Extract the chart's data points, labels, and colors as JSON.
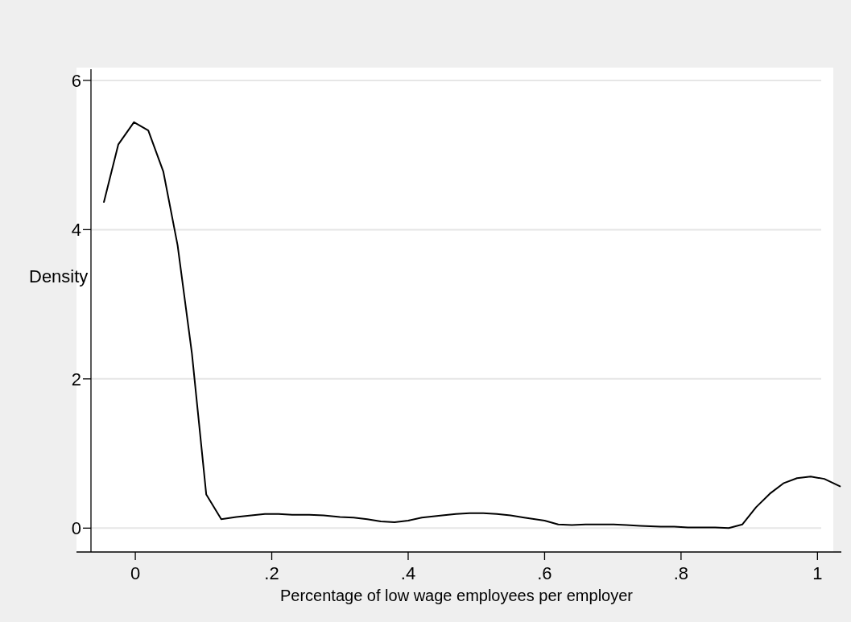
{
  "chart_data": {
    "type": "line",
    "xlabel": "Percentage of low wage employees per employer",
    "ylabel": "Density",
    "x": [
      -0.046,
      -0.025,
      -0.002,
      0.019,
      0.041,
      0.062,
      0.083,
      0.104,
      0.126,
      0.148,
      0.17,
      0.19,
      0.21,
      0.23,
      0.255,
      0.276,
      0.3,
      0.32,
      0.34,
      0.36,
      0.38,
      0.4,
      0.42,
      0.45,
      0.47,
      0.49,
      0.51,
      0.53,
      0.55,
      0.57,
      0.6,
      0.62,
      0.64,
      0.66,
      0.68,
      0.7,
      0.72,
      0.74,
      0.77,
      0.79,
      0.81,
      0.83,
      0.85,
      0.87,
      0.89,
      0.91,
      0.93,
      0.95,
      0.97,
      0.99,
      1.01,
      1.033
    ],
    "series": [
      {
        "color": "#000000",
        "values": [
          4.37,
          5.14,
          5.44,
          5.33,
          4.78,
          3.79,
          2.34,
          0.45,
          0.12,
          0.15,
          0.17,
          0.19,
          0.19,
          0.18,
          0.18,
          0.17,
          0.15,
          0.14,
          0.12,
          0.09,
          0.08,
          0.1,
          0.14,
          0.17,
          0.19,
          0.2,
          0.2,
          0.19,
          0.17,
          0.14,
          0.1,
          0.05,
          0.04,
          0.05,
          0.05,
          0.05,
          0.04,
          0.03,
          0.02,
          0.02,
          0.01,
          0.01,
          0.01,
          0.0,
          0.05,
          0.28,
          0.46,
          0.6,
          0.67,
          0.69,
          0.66,
          0.56
        ]
      }
    ],
    "xlim": [
      -0.065,
      1.035
    ],
    "ylim": [
      -0.32,
      6.15
    ],
    "xticks": [
      0,
      {
        "value": 0.2,
        "label": ".2"
      },
      {
        "value": 0.4,
        "label": ".4"
      },
      {
        "value": 0.6,
        "label": ".6"
      },
      {
        "value": 0.8,
        "label": ".8"
      },
      1
    ],
    "yticks": [
      0,
      2,
      4,
      6
    ],
    "grid": "y",
    "marker": "none",
    "line_style": "solid"
  }
}
